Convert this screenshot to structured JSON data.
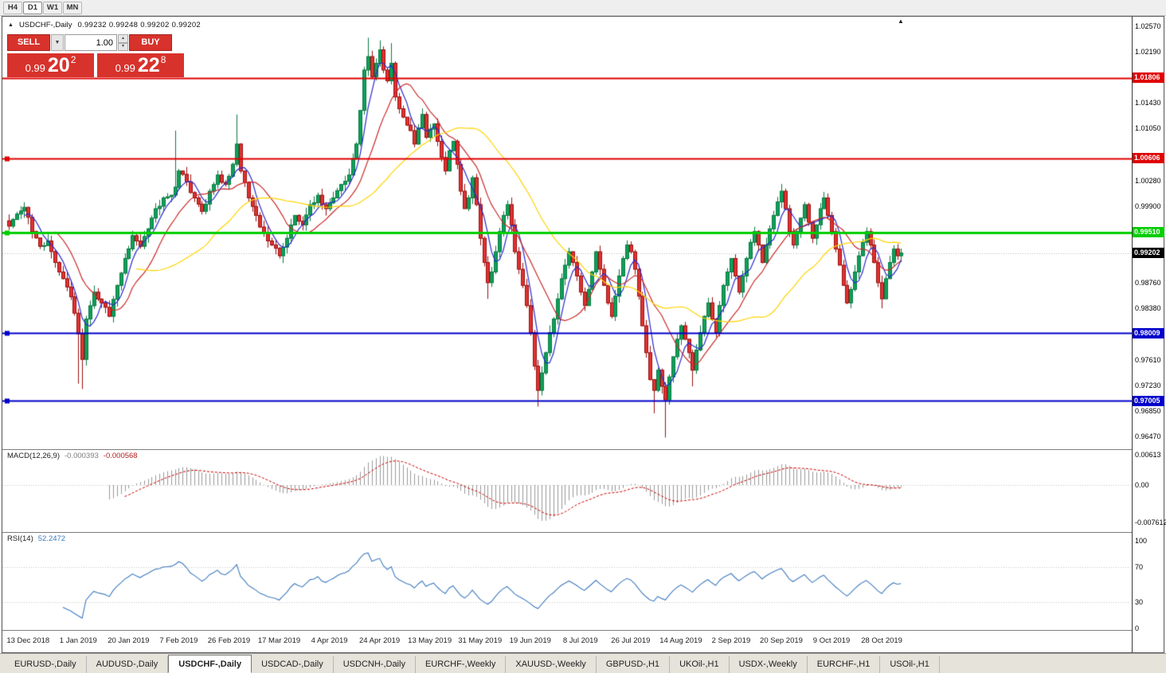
{
  "toolbar": {
    "timeframes": [
      "H4",
      "D1",
      "W1",
      "MN"
    ],
    "active": "D1"
  },
  "chart": {
    "collapse_icon": "▲",
    "symbol": "USDCHF-,Daily",
    "ohlc_text": "0.99232  0.99248  0.99202  0.99202",
    "shift_marker": "▲"
  },
  "trade": {
    "sell": "SELL",
    "buy": "BUY",
    "volume": "1.00",
    "dropdown_icon": "▼",
    "spin_up": "▲",
    "spin_down": "▼",
    "bid": {
      "base": "0.99",
      "big": "20",
      "sup": "2"
    },
    "ask": {
      "base": "0.99",
      "big": "22",
      "sup": "8"
    }
  },
  "colors": {
    "up": "#0fa05a",
    "up_border": "#0a7a42",
    "down": "#e03232",
    "down_border": "#9c1010",
    "ma_fast": "#2b2bd0",
    "ma_mid": "#cc2a2a",
    "ma_slow": "#ffd400",
    "macd_hist": "#9a9a9a",
    "macd_signal": "#cc0000",
    "rsi_line": "#3f7cbf",
    "level_red": "#e00000",
    "level_green": "#00ce00",
    "level_blue": "#0000cc",
    "current_badge": "#000000",
    "trade_red": "#d8322c"
  },
  "price_axis": {
    "labels": [
      "1.02570",
      "1.02190",
      "1.01430",
      "1.01050",
      "1.00280",
      "0.99900",
      "0.98760",
      "0.98380",
      "0.97610",
      "0.97230",
      "0.96850",
      "0.96470"
    ],
    "current": {
      "label": "0.99202",
      "price": 0.99202
    }
  },
  "levels": [
    {
      "label": "1.01806",
      "price": 1.01806,
      "color": "#e00000",
      "width": 2,
      "handle": false
    },
    {
      "label": "1.00606",
      "price": 1.00606,
      "color": "#e00000",
      "width": 2,
      "handle": true
    },
    {
      "label": "0.99510",
      "price": 0.9951,
      "color": "#00ce00",
      "width": 3,
      "handle": true
    },
    {
      "label": "0.98009",
      "price": 0.98009,
      "color": "#0000cc",
      "width": 2,
      "handle": true
    },
    {
      "label": "0.97005",
      "price": 0.97005,
      "color": "#0000cc",
      "width": 2,
      "handle": true
    }
  ],
  "macd": {
    "name": "MACD(12,26,9)",
    "value_main": "-0.000393",
    "value_signal": "-0.000568",
    "axis": [
      "0.00613",
      "0.00",
      "-0.007612"
    ],
    "fast": 12,
    "slow": 26,
    "signal": 9
  },
  "rsi": {
    "name": "RSI(14)",
    "value": "52.2472",
    "period": 14,
    "axis": [
      "100",
      "70",
      "30",
      "0"
    ],
    "guide_levels": [
      70,
      30
    ]
  },
  "dates": [
    "13 Dec 2018",
    "1 Jan 2019",
    "20 Jan 2019",
    "7 Feb 2019",
    "26 Feb 2019",
    "17 Mar 2019",
    "4 Apr 2019",
    "24 Apr 2019",
    "13 May 2019",
    "31 May 2019",
    "19 Jun 2019",
    "8 Jul 2019",
    "26 Jul 2019",
    "14 Aug 2019",
    "2 Sep 2019",
    "20 Sep 2019",
    "9 Oct 2019",
    "28 Oct 2019"
  ],
  "tabs": {
    "items": [
      "EURUSD-,Daily",
      "AUDUSD-,Daily",
      "USDCHF-,Daily",
      "USDCAD-,Daily",
      "USDCNH-,Daily",
      "EURCHF-,Weekly",
      "XAUUSD-,Weekly",
      "GBPUSD-,H1",
      "UKOil-,H1",
      "USDX-,Weekly",
      "EURCHF-,H1",
      "USOil-,H1"
    ],
    "active_index": 2
  },
  "chart_data": {
    "type": "candlestick+macd+rsi",
    "symbol": "USDCHF",
    "timeframe": "Daily",
    "candle_count": 232,
    "ma_overlays": [
      {
        "period": 5,
        "color_key": "ma_fast"
      },
      {
        "period": 13,
        "color_key": "ma_mid"
      },
      {
        "period": 34,
        "color_key": "ma_slow"
      }
    ],
    "close_anchors": [
      [
        0,
        0.996
      ],
      [
        2,
        0.9978
      ],
      [
        4,
        0.9988
      ],
      [
        6,
        0.9952
      ],
      [
        8,
        0.993
      ],
      [
        10,
        0.9938
      ],
      [
        12,
        0.9906
      ],
      [
        14,
        0.9882
      ],
      [
        16,
        0.9855
      ],
      [
        18,
        0.98
      ],
      [
        19,
        0.9762
      ],
      [
        20,
        0.9822
      ],
      [
        22,
        0.9862
      ],
      [
        24,
        0.9846
      ],
      [
        26,
        0.9826
      ],
      [
        28,
        0.9872
      ],
      [
        30,
        0.9912
      ],
      [
        32,
        0.9946
      ],
      [
        34,
        0.993
      ],
      [
        36,
        0.9956
      ],
      [
        38,
        0.9986
      ],
      [
        40,
        1.0002
      ],
      [
        42,
        1.0006
      ],
      [
        43,
        1.0018
      ],
      [
        44,
        1.0042
      ],
      [
        46,
        1.0026
      ],
      [
        48,
        1.0002
      ],
      [
        50,
        0.9982
      ],
      [
        52,
        1.0012
      ],
      [
        54,
        1.0036
      ],
      [
        56,
        1.0022
      ],
      [
        58,
        1.0052
      ],
      [
        59,
        1.0082
      ],
      [
        60,
        1.0042
      ],
      [
        62,
        1.0002
      ],
      [
        64,
        0.9976
      ],
      [
        66,
        0.995
      ],
      [
        68,
        0.9932
      ],
      [
        70,
        0.9916
      ],
      [
        72,
        0.9942
      ],
      [
        74,
        0.9976
      ],
      [
        76,
        0.9962
      ],
      [
        78,
        0.9992
      ],
      [
        80,
        1.0006
      ],
      [
        82,
        0.9986
      ],
      [
        84,
        1.0002
      ],
      [
        86,
        1.0022
      ],
      [
        88,
        1.0036
      ],
      [
        90,
        1.0082
      ],
      [
        91,
        1.0132
      ],
      [
        92,
        1.0192
      ],
      [
        93,
        1.0212
      ],
      [
        94,
        1.0182
      ],
      [
        95,
        1.0202
      ],
      [
        96,
        1.0222
      ],
      [
        97,
        1.0192
      ],
      [
        98,
        1.0176
      ],
      [
        99,
        1.0202
      ],
      [
        100,
        1.0152
      ],
      [
        102,
        1.0122
      ],
      [
        104,
        1.0102
      ],
      [
        105,
        1.0082
      ],
      [
        106,
        1.0106
      ],
      [
        107,
        1.0126
      ],
      [
        108,
        1.0092
      ],
      [
        110,
        1.0112
      ],
      [
        111,
        1.0086
      ],
      [
        112,
        1.0062
      ],
      [
        113,
        1.0042
      ],
      [
        114,
        1.0072
      ],
      [
        115,
        1.0086
      ],
      [
        116,
        1.0052
      ],
      [
        117,
        1.0012
      ],
      [
        118,
        0.9986
      ],
      [
        119,
        1.0002
      ],
      [
        120,
        1.0032
      ],
      [
        121,
        0.9992
      ],
      [
        122,
        0.9942
      ],
      [
        123,
        0.9906
      ],
      [
        124,
        0.9876
      ],
      [
        125,
        0.9892
      ],
      [
        126,
        0.9922
      ],
      [
        127,
        0.9952
      ],
      [
        128,
        0.9976
      ],
      [
        129,
        0.9992
      ],
      [
        130,
        0.9962
      ],
      [
        131,
        0.9922
      ],
      [
        132,
        0.9896
      ],
      [
        133,
        0.9872
      ],
      [
        134,
        0.9842
      ],
      [
        135,
        0.9802
      ],
      [
        136,
        0.9752
      ],
      [
        137,
        0.9716
      ],
      [
        138,
        0.9742
      ],
      [
        139,
        0.9772
      ],
      [
        140,
        0.9802
      ],
      [
        141,
        0.9822
      ],
      [
        142,
        0.9852
      ],
      [
        143,
        0.9882
      ],
      [
        144,
        0.9902
      ],
      [
        145,
        0.9922
      ],
      [
        146,
        0.9906
      ],
      [
        147,
        0.9886
      ],
      [
        148,
        0.9862
      ],
      [
        149,
        0.9842
      ],
      [
        150,
        0.9866
      ],
      [
        151,
        0.9892
      ],
      [
        152,
        0.9922
      ],
      [
        153,
        0.9896
      ],
      [
        154,
        0.9872
      ],
      [
        155,
        0.9846
      ],
      [
        156,
        0.9826
      ],
      [
        157,
        0.9856
      ],
      [
        158,
        0.9886
      ],
      [
        159,
        0.9912
      ],
      [
        160,
        0.9932
      ],
      [
        161,
        0.9922
      ],
      [
        162,
        0.9896
      ],
      [
        163,
        0.9856
      ],
      [
        164,
        0.9812
      ],
      [
        165,
        0.9772
      ],
      [
        166,
        0.9732
      ],
      [
        167,
        0.9716
      ],
      [
        168,
        0.9746
      ],
      [
        169,
        0.9722
      ],
      [
        170,
        0.9702
      ],
      [
        171,
        0.9736
      ],
      [
        172,
        0.9766
      ],
      [
        173,
        0.9792
      ],
      [
        174,
        0.9812
      ],
      [
        175,
        0.9792
      ],
      [
        176,
        0.9772
      ],
      [
        177,
        0.9746
      ],
      [
        178,
        0.9776
      ],
      [
        179,
        0.9802
      ],
      [
        180,
        0.9826
      ],
      [
        181,
        0.9846
      ],
      [
        182,
        0.9822
      ],
      [
        183,
        0.9802
      ],
      [
        184,
        0.9842
      ],
      [
        185,
        0.9872
      ],
      [
        186,
        0.9892
      ],
      [
        187,
        0.9912
      ],
      [
        188,
        0.9886
      ],
      [
        189,
        0.9862
      ],
      [
        190,
        0.9886
      ],
      [
        191,
        0.9912
      ],
      [
        192,
        0.9936
      ],
      [
        193,
        0.9952
      ],
      [
        194,
        0.9932
      ],
      [
        195,
        0.9906
      ],
      [
        196,
        0.9932
      ],
      [
        197,
        0.9956
      ],
      [
        198,
        0.9976
      ],
      [
        199,
        0.9996
      ],
      [
        200,
        1.0012
      ],
      [
        201,
        0.9986
      ],
      [
        202,
        0.9952
      ],
      [
        203,
        0.9932
      ],
      [
        204,
        0.9952
      ],
      [
        205,
        0.9972
      ],
      [
        206,
        0.9992
      ],
      [
        207,
        0.9966
      ],
      [
        208,
        0.9942
      ],
      [
        209,
        0.9962
      ],
      [
        210,
        0.9986
      ],
      [
        211,
        1.0002
      ],
      [
        212,
        0.9976
      ],
      [
        213,
        0.9952
      ],
      [
        214,
        0.9926
      ],
      [
        215,
        0.9902
      ],
      [
        216,
        0.9872
      ],
      [
        217,
        0.9846
      ],
      [
        218,
        0.9866
      ],
      [
        219,
        0.9892
      ],
      [
        220,
        0.9916
      ],
      [
        221,
        0.9936
      ],
      [
        222,
        0.9952
      ],
      [
        223,
        0.9932
      ],
      [
        224,
        0.9906
      ],
      [
        225,
        0.9876
      ],
      [
        226,
        0.9852
      ],
      [
        227,
        0.9882
      ],
      [
        228,
        0.9906
      ],
      [
        229,
        0.9926
      ],
      [
        230,
        0.9916
      ],
      [
        231,
        0.99202
      ]
    ],
    "extremes": {
      "18": {
        "low": 0.9726
      },
      "19": {
        "low": 0.9718
      },
      "43": {
        "high": 1.0102
      },
      "59": {
        "high": 1.0126
      },
      "93": {
        "high": 1.024
      },
      "96": {
        "high": 1.0236
      },
      "99": {
        "high": 1.0232
      },
      "124": {
        "low": 0.9852
      },
      "137": {
        "low": 0.9692
      },
      "167": {
        "low": 0.9682
      },
      "170": {
        "low": 0.9646
      },
      "177": {
        "low": 0.9722
      },
      "226": {
        "low": 0.9838
      }
    }
  }
}
